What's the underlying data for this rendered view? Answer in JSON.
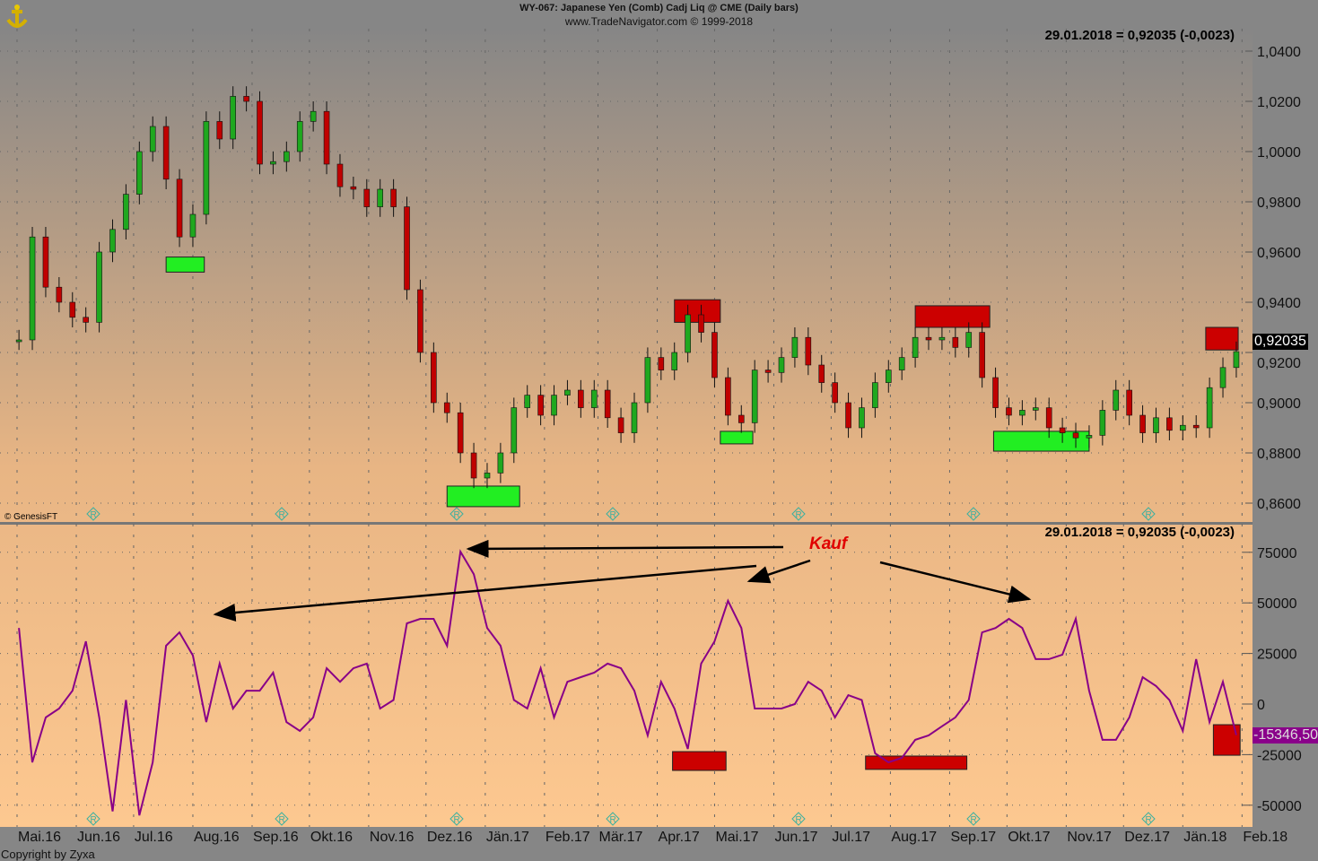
{
  "header": {
    "title": "WY-067:  Japanese Yen (Comb) Cadj Liq @ CME  (Daily bars)",
    "subtitle": "www.TradeNavigator.com © 1999-2018"
  },
  "footer": {
    "copyright": "Copyright by Zyxa"
  },
  "watermark": "© GenesisFT",
  "colors": {
    "bg_top": "#868686",
    "bg_bottom": "#fdc890",
    "axis_bg": "#868686",
    "up_candle": "#1fa81f",
    "down_candle": "#c00000",
    "indicator_line": "#880088",
    "buy_box": "#22ee22",
    "sell_box": "#cc0000",
    "annotation": "#e00000",
    "last_price_bg": "#000000",
    "last_indicator_bg": "#8a008a"
  },
  "chart_data": [
    {
      "type": "candlestick",
      "panel": "price",
      "readout": "29.01.2018 = 0,92035 (-0,0023)",
      "last_value_label": "0,92035",
      "ylim": [
        0.85,
        1.049
      ],
      "yticks": [
        "1,0400",
        "1,0200",
        "1,0000",
        "0,9800",
        "0,9600",
        "0,9400",
        "0,9200",
        "0,9000",
        "0,8800",
        "0,8600"
      ],
      "ytick_values": [
        1.04,
        1.02,
        1.0,
        0.98,
        0.96,
        0.94,
        0.92,
        0.9,
        0.88,
        0.86
      ],
      "grid": true,
      "dates": [
        "2016-05-02",
        "2016-05-09",
        "2016-05-16",
        "2016-05-23",
        "2016-05-30",
        "2016-06-06",
        "2016-06-13",
        "2016-06-20",
        "2016-06-27",
        "2016-07-04",
        "2016-07-11",
        "2016-07-18",
        "2016-07-25",
        "2016-08-01",
        "2016-08-08",
        "2016-08-15",
        "2016-08-22",
        "2016-08-29",
        "2016-09-05",
        "2016-09-12",
        "2016-09-19",
        "2016-09-26",
        "2016-10-03",
        "2016-10-10",
        "2016-10-17",
        "2016-10-24",
        "2016-10-31",
        "2016-11-07",
        "2016-11-14",
        "2016-11-21",
        "2016-11-28",
        "2016-12-05",
        "2016-12-12",
        "2016-12-19",
        "2016-12-26",
        "2017-01-02",
        "2017-01-09",
        "2017-01-16",
        "2017-01-23",
        "2017-01-30",
        "2017-02-06",
        "2017-02-13",
        "2017-02-20",
        "2017-02-27",
        "2017-03-06",
        "2017-03-13",
        "2017-03-20",
        "2017-03-27",
        "2017-04-03",
        "2017-04-10",
        "2017-04-17",
        "2017-04-24",
        "2017-05-01",
        "2017-05-08",
        "2017-05-15",
        "2017-05-22",
        "2017-05-29",
        "2017-06-05",
        "2017-06-12",
        "2017-06-19",
        "2017-06-26",
        "2017-07-03",
        "2017-07-10",
        "2017-07-17",
        "2017-07-24",
        "2017-07-31",
        "2017-08-07",
        "2017-08-14",
        "2017-08-21",
        "2017-08-28",
        "2017-09-04",
        "2017-09-11",
        "2017-09-18",
        "2017-09-25",
        "2017-10-02",
        "2017-10-09",
        "2017-10-16",
        "2017-10-23",
        "2017-10-30",
        "2017-11-06",
        "2017-11-13",
        "2017-11-20",
        "2017-11-27",
        "2017-12-04",
        "2017-12-11",
        "2017-12-18",
        "2017-12-25",
        "2018-01-01",
        "2018-01-08",
        "2018-01-15",
        "2018-01-22",
        "2018-01-29"
      ],
      "close": [
        0.925,
        0.966,
        0.946,
        0.94,
        0.934,
        0.932,
        0.96,
        0.969,
        0.983,
        1.0,
        1.01,
        0.989,
        0.966,
        0.975,
        1.012,
        1.005,
        1.022,
        1.02,
        0.995,
        0.996,
        1.0,
        1.012,
        1.016,
        0.995,
        0.986,
        0.985,
        0.978,
        0.985,
        0.978,
        0.945,
        0.92,
        0.9,
        0.896,
        0.88,
        0.87,
        0.872,
        0.88,
        0.898,
        0.903,
        0.895,
        0.903,
        0.905,
        0.898,
        0.905,
        0.894,
        0.888,
        0.9,
        0.918,
        0.913,
        0.92,
        0.935,
        0.928,
        0.91,
        0.895,
        0.892,
        0.913,
        0.912,
        0.918,
        0.926,
        0.915,
        0.908,
        0.9,
        0.89,
        0.898,
        0.908,
        0.913,
        0.918,
        0.926,
        0.925,
        0.926,
        0.922,
        0.928,
        0.91,
        0.898,
        0.895,
        0.897,
        0.898,
        0.89,
        0.888,
        0.886,
        0.887,
        0.897,
        0.905,
        0.895,
        0.888,
        0.894,
        0.889,
        0.891,
        0.89,
        0.906,
        0.914,
        0.92035
      ],
      "boxes": [
        {
          "kind": "buy",
          "from": "2016-07-18",
          "to": "2016-08-07",
          "low": 0.952,
          "high": 0.958
        },
        {
          "kind": "buy",
          "from": "2016-12-12",
          "to": "2017-01-19",
          "low": 0.8586,
          "high": 0.8668
        },
        {
          "kind": "sell",
          "from": "2017-04-10",
          "to": "2017-05-04",
          "low": 0.932,
          "high": 0.941
        },
        {
          "kind": "buy",
          "from": "2017-05-04",
          "to": "2017-05-21",
          "low": 0.8836,
          "high": 0.8886
        },
        {
          "kind": "sell",
          "from": "2017-08-14",
          "to": "2017-09-22",
          "low": 0.93,
          "high": 0.9386
        },
        {
          "kind": "buy",
          "from": "2017-09-24",
          "to": "2017-11-13",
          "low": 0.8807,
          "high": 0.8886
        },
        {
          "kind": "sell",
          "from": "2018-01-13",
          "to": "2018-01-30",
          "low": 0.921,
          "high": 0.93
        }
      ]
    },
    {
      "type": "line",
      "panel": "indicator",
      "readout": "29.01.2018 = 0,92035 (-0,0023)",
      "last_value_label": "-15346,50",
      "annotation": "Kauf",
      "ylim": [
        -60000,
        90000
      ],
      "yticks": [
        "75000",
        "50000",
        "25000",
        "0",
        "-25000",
        "-50000"
      ],
      "ytick_values": [
        75000,
        50000,
        25000,
        0,
        -25000,
        -50000
      ],
      "grid": true,
      "values": [
        37600,
        -28800,
        -6600,
        -2200,
        6600,
        31000,
        -6600,
        -53000,
        2000,
        -55000,
        -28800,
        28800,
        35400,
        24000,
        -8900,
        20000,
        -2200,
        6600,
        6600,
        15500,
        -8900,
        -13300,
        -6600,
        17700,
        11000,
        17700,
        20000,
        -2200,
        2000,
        39900,
        42100,
        42100,
        28800,
        75300,
        64200,
        37600,
        28800,
        2000,
        -2200,
        17700,
        -6600,
        11000,
        13300,
        15500,
        20000,
        17700,
        6600,
        -15500,
        11000,
        -2200,
        -22200,
        20000,
        31000,
        51000,
        37600,
        -2200,
        -2200,
        -2200,
        0,
        11000,
        6600,
        -6600,
        4400,
        2000,
        -24400,
        -28800,
        -26600,
        -17700,
        -15500,
        -11000,
        -6600,
        2000,
        35400,
        37600,
        42100,
        37600,
        22200,
        22200,
        24400,
        42100,
        6600,
        -17700,
        -17700,
        -6600,
        13300,
        8900,
        2000,
        -13300,
        22200,
        -8900,
        11000,
        -15346.5
      ],
      "boxes": [
        {
          "kind": "sell",
          "from": "2017-04-09",
          "to": "2017-05-07",
          "low": -32800,
          "high": -23500
        },
        {
          "kind": "sell",
          "from": "2017-07-19",
          "to": "2017-09-10",
          "low": -32300,
          "high": -25700
        },
        {
          "kind": "sell",
          "from": "2018-01-17",
          "to": "2018-01-31",
          "low": -25300,
          "high": -10200
        }
      ]
    }
  ],
  "x_axis": {
    "labels": [
      "Mai.16",
      "Jun.16",
      "Jul.16",
      "Aug.16",
      "Sep.16",
      "Okt.16",
      "Nov.16",
      "Dez.16",
      "Jän.17",
      "Feb.17",
      "Mär.17",
      "Apr.17",
      "Mai.17",
      "Jun.17",
      "Jul.17",
      "Aug.17",
      "Sep.17",
      "Okt.17",
      "Nov.17",
      "Dez.17",
      "Jän.18",
      "Feb.18"
    ],
    "month_starts": [
      "2016-05-01",
      "2016-06-01",
      "2016-07-01",
      "2016-08-01",
      "2016-09-01",
      "2016-10-01",
      "2016-11-01",
      "2016-12-01",
      "2017-01-01",
      "2017-02-01",
      "2017-03-01",
      "2017-04-01",
      "2017-05-01",
      "2017-06-01",
      "2017-07-01",
      "2017-08-01",
      "2017-09-01",
      "2017-10-01",
      "2017-11-01",
      "2017-12-01",
      "2018-01-01",
      "2018-02-01"
    ]
  }
}
